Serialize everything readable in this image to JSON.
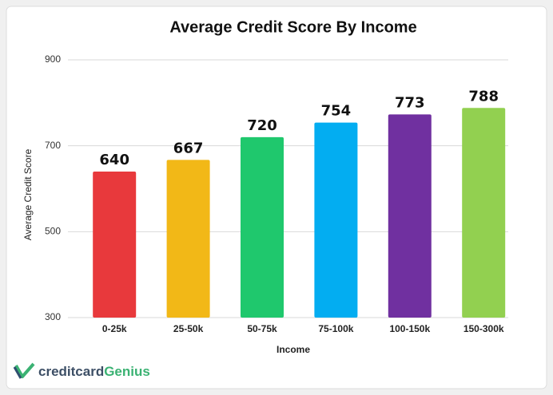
{
  "chart_data": {
    "type": "bar",
    "title": "Average Credit Score By Income",
    "x_label": "Income",
    "y_label": "Average Credit Score",
    "categories": [
      "0-25k",
      "25-50k",
      "50-75k",
      "75-100k",
      "100-150k",
      "150-300k"
    ],
    "values": [
      640,
      667,
      720,
      754,
      773,
      788
    ],
    "colors": [
      "#e8393c",
      "#f2b817",
      "#1fc86d",
      "#03adf1",
      "#7030a0",
      "#92d050"
    ],
    "ylim": [
      300,
      900
    ],
    "yticks": [
      300,
      500,
      700,
      900
    ],
    "grid": true
  },
  "logo": [
    "creditcard",
    "Genius"
  ]
}
